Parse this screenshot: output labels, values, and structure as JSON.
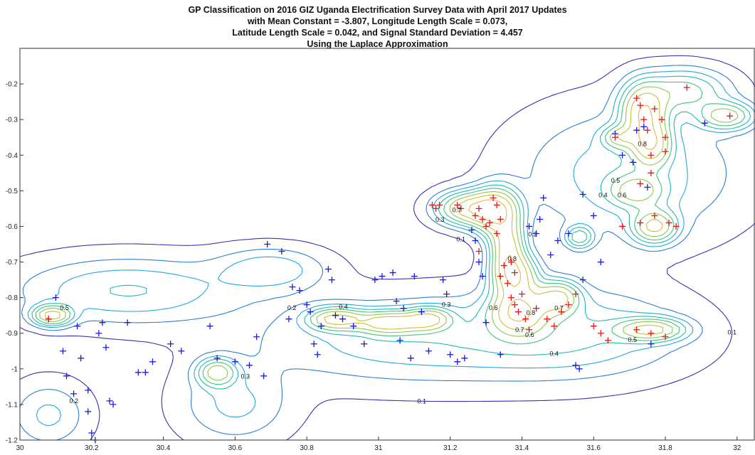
{
  "chart_data": {
    "type": "contour",
    "title": [
      "GP Classification on 2016 GIZ Uganda Electrification Survey Data with April 2017 Updates",
      "with Mean Constant = -3.807, Longitude Length Scale = 0.073,",
      "Latitude Length Scale = 0.042, and Signal Standard Deviation = 4.457",
      "Using the Laplace Approximation"
    ],
    "xlabel": "",
    "ylabel": "",
    "xlim": [
      30,
      32.05
    ],
    "ylim": [
      -1.2,
      -0.1
    ],
    "xticks": [
      30,
      30.2,
      30.4,
      30.6,
      30.8,
      31,
      31.2,
      31.4,
      31.6,
      31.8,
      32
    ],
    "yticks": [
      -0.2,
      -0.3,
      -0.4,
      -0.5,
      -0.6,
      -0.7,
      -0.8,
      -0.9,
      -1,
      -1.1,
      -1.2
    ],
    "grid": false,
    "contour_levels": [
      0.1,
      0.2,
      0.3,
      0.4,
      0.5,
      0.6,
      0.7,
      0.8,
      0.9
    ],
    "level_colors": [
      "#3b2fb0",
      "#2c7fd0",
      "#22a7e0",
      "#1fbbb0",
      "#3dc57c",
      "#8fc84a",
      "#c7c238",
      "#f0b53a",
      "#f7d43a"
    ],
    "bumps": [
      {
        "x": 30.09,
        "y": -0.85,
        "a": 1.0,
        "sx": 0.035,
        "sy": 0.018
      },
      {
        "x": 30.55,
        "y": -1.01,
        "a": 0.75,
        "sx": 0.035,
        "sy": 0.025
      },
      {
        "x": 30.88,
        "y": -0.86,
        "a": 0.9,
        "sx": 0.05,
        "sy": 0.02
      },
      {
        "x": 31.03,
        "y": -0.87,
        "a": 0.95,
        "sx": 0.06,
        "sy": 0.02
      },
      {
        "x": 31.14,
        "y": -0.86,
        "a": 0.8,
        "sx": 0.04,
        "sy": 0.02
      },
      {
        "x": 31.26,
        "y": -0.55,
        "a": 1.1,
        "sx": 0.06,
        "sy": 0.03
      },
      {
        "x": 31.33,
        "y": -0.56,
        "a": 1.0,
        "sx": 0.04,
        "sy": 0.045
      },
      {
        "x": 31.36,
        "y": -0.66,
        "a": 0.95,
        "sx": 0.03,
        "sy": 0.05
      },
      {
        "x": 31.38,
        "y": -0.74,
        "a": 1.1,
        "sx": 0.04,
        "sy": 0.04
      },
      {
        "x": 31.39,
        "y": -0.84,
        "a": 1.1,
        "sx": 0.05,
        "sy": 0.04
      },
      {
        "x": 31.5,
        "y": -0.8,
        "a": 0.9,
        "sx": 0.04,
        "sy": 0.03
      },
      {
        "x": 31.56,
        "y": -0.63,
        "a": 0.6,
        "sx": 0.025,
        "sy": 0.02
      },
      {
        "x": 31.76,
        "y": -0.89,
        "a": 0.9,
        "sx": 0.06,
        "sy": 0.02
      },
      {
        "x": 31.74,
        "y": -0.28,
        "a": 1.1,
        "sx": 0.04,
        "sy": 0.05
      },
      {
        "x": 31.76,
        "y": -0.37,
        "a": 0.95,
        "sx": 0.035,
        "sy": 0.04
      },
      {
        "x": 31.77,
        "y": -0.6,
        "a": 0.9,
        "sx": 0.04,
        "sy": 0.03
      },
      {
        "x": 31.72,
        "y": -0.5,
        "a": 0.6,
        "sx": 0.05,
        "sy": 0.03
      },
      {
        "x": 31.67,
        "y": -0.35,
        "a": 0.6,
        "sx": 0.03,
        "sy": 0.02
      },
      {
        "x": 31.97,
        "y": -0.29,
        "a": 0.75,
        "sx": 0.05,
        "sy": 0.025
      },
      {
        "x": 31.85,
        "y": -0.22,
        "a": 0.55,
        "sx": 0.08,
        "sy": 0.04
      },
      {
        "x": 30.3,
        "y": -0.78,
        "a": 0.35,
        "sx": 0.2,
        "sy": 0.06
      },
      {
        "x": 30.7,
        "y": -0.72,
        "a": 0.3,
        "sx": 0.1,
        "sy": 0.04
      },
      {
        "x": 31.1,
        "y": -0.92,
        "a": 0.3,
        "sx": 0.3,
        "sy": 0.08
      },
      {
        "x": 31.55,
        "y": -0.9,
        "a": 0.3,
        "sx": 0.2,
        "sy": 0.08
      },
      {
        "x": 31.7,
        "y": -0.45,
        "a": 0.3,
        "sx": 0.2,
        "sy": 0.12
      },
      {
        "x": 30.08,
        "y": -1.13,
        "a": 0.25,
        "sx": 0.07,
        "sy": 0.06
      },
      {
        "x": 30.6,
        "y": -1.1,
        "a": 0.25,
        "sx": 0.1,
        "sy": 0.07
      }
    ],
    "positive_points": [
      [
        30.08,
        -0.86
      ],
      [
        31.15,
        -0.54
      ],
      [
        31.16,
        -0.55
      ],
      [
        31.17,
        -0.54
      ],
      [
        31.22,
        -0.54
      ],
      [
        31.23,
        -0.55
      ],
      [
        31.27,
        -0.57
      ],
      [
        31.29,
        -0.58
      ],
      [
        31.3,
        -0.6
      ],
      [
        31.31,
        -0.59
      ],
      [
        31.28,
        -0.55
      ],
      [
        31.32,
        -0.52
      ],
      [
        31.33,
        -0.54
      ],
      [
        31.34,
        -0.58
      ],
      [
        31.33,
        -0.62
      ],
      [
        31.28,
        -0.67
      ],
      [
        31.35,
        -0.71
      ],
      [
        31.37,
        -0.7
      ],
      [
        31.38,
        -0.73
      ],
      [
        31.36,
        -0.76
      ],
      [
        31.34,
        -0.74
      ],
      [
        31.37,
        -0.8
      ],
      [
        31.38,
        -0.82
      ],
      [
        31.39,
        -0.84
      ],
      [
        31.41,
        -0.86
      ],
      [
        31.42,
        -0.89
      ],
      [
        31.4,
        -0.79
      ],
      [
        31.44,
        -0.83
      ],
      [
        31.47,
        -0.86
      ],
      [
        31.49,
        -0.88
      ],
      [
        31.51,
        -0.84
      ],
      [
        31.53,
        -0.82
      ],
      [
        31.55,
        -0.79
      ],
      [
        31.6,
        -0.88
      ],
      [
        31.62,
        -0.9
      ],
      [
        31.64,
        -0.92
      ],
      [
        31.72,
        -0.89
      ],
      [
        31.76,
        -0.9
      ],
      [
        31.8,
        -0.91
      ],
      [
        31.68,
        -0.6
      ],
      [
        31.72,
        -0.24
      ],
      [
        31.73,
        -0.26
      ],
      [
        31.74,
        -0.3
      ],
      [
        31.75,
        -0.33
      ],
      [
        31.77,
        -0.27
      ],
      [
        31.79,
        -0.3
      ],
      [
        31.86,
        -0.21
      ],
      [
        31.8,
        -0.35
      ],
      [
        31.8,
        -0.39
      ],
      [
        31.76,
        -0.4
      ],
      [
        31.76,
        -0.45
      ],
      [
        31.73,
        -0.48
      ],
      [
        31.77,
        -0.57
      ],
      [
        31.81,
        -0.59
      ],
      [
        31.83,
        -0.6
      ],
      [
        31.73,
        -0.59
      ],
      [
        31.66,
        -0.35
      ],
      [
        31.98,
        -0.29
      ]
    ],
    "negative_points": [
      [
        30.08,
        -0.86
      ],
      [
        30.1,
        -0.8
      ],
      [
        30.12,
        -0.95
      ],
      [
        30.13,
        -1.02
      ],
      [
        30.15,
        -1.07
      ],
      [
        30.16,
        -0.88
      ],
      [
        30.17,
        -0.97
      ],
      [
        30.19,
        -1.06
      ],
      [
        30.19,
        -1.12
      ],
      [
        30.2,
        -1.18
      ],
      [
        30.21,
        -1.2
      ],
      [
        30.22,
        -0.9
      ],
      [
        30.23,
        -0.87
      ],
      [
        30.25,
        -1.09
      ],
      [
        30.26,
        -1.1
      ],
      [
        30.24,
        -0.94
      ],
      [
        30.3,
        -0.87
      ],
      [
        30.33,
        -1.01
      ],
      [
        30.35,
        -1.01
      ],
      [
        30.37,
        -0.98
      ],
      [
        30.42,
        -0.93
      ],
      [
        30.45,
        -0.95
      ],
      [
        30.53,
        -0.88
      ],
      [
        30.55,
        -0.97
      ],
      [
        30.6,
        -0.98
      ],
      [
        30.64,
        -0.99
      ],
      [
        30.66,
        -0.91
      ],
      [
        30.68,
        -1.02
      ],
      [
        30.69,
        -0.65
      ],
      [
        30.73,
        -0.67
      ],
      [
        30.75,
        -0.86
      ],
      [
        30.76,
        -0.77
      ],
      [
        30.78,
        -0.78
      ],
      [
        30.8,
        -0.82
      ],
      [
        30.81,
        -0.84
      ],
      [
        30.82,
        -0.93
      ],
      [
        30.83,
        -0.96
      ],
      [
        30.84,
        -0.88
      ],
      [
        30.86,
        -0.72
      ],
      [
        30.87,
        -0.75
      ],
      [
        30.88,
        -0.85
      ],
      [
        30.9,
        -0.86
      ],
      [
        30.93,
        -0.88
      ],
      [
        30.96,
        -0.93
      ],
      [
        30.99,
        -0.75
      ],
      [
        31.01,
        -0.74
      ],
      [
        31.04,
        -0.73
      ],
      [
        31.05,
        -0.81
      ],
      [
        31.06,
        -0.92
      ],
      [
        31.07,
        -0.83
      ],
      [
        31.09,
        -0.97
      ],
      [
        31.1,
        -0.74
      ],
      [
        31.12,
        -0.84
      ],
      [
        31.14,
        -0.95
      ],
      [
        31.18,
        -0.75
      ],
      [
        31.19,
        -0.79
      ],
      [
        31.2,
        -0.96
      ],
      [
        31.22,
        -0.98
      ],
      [
        31.24,
        -0.97
      ],
      [
        31.26,
        -0.61
      ],
      [
        31.27,
        -0.64
      ],
      [
        31.28,
        -0.7
      ],
      [
        31.29,
        -0.74
      ],
      [
        31.3,
        -0.87
      ],
      [
        31.34,
        -0.96
      ],
      [
        31.42,
        -0.6
      ],
      [
        31.44,
        -0.62
      ],
      [
        31.45,
        -0.58
      ],
      [
        31.46,
        -0.52
      ],
      [
        31.48,
        -0.68
      ],
      [
        31.5,
        -0.64
      ],
      [
        31.53,
        -0.62
      ],
      [
        31.55,
        -0.99
      ],
      [
        31.56,
        -1.0
      ],
      [
        31.57,
        -0.75
      ],
      [
        31.6,
        -0.57
      ],
      [
        31.62,
        -0.7
      ],
      [
        31.66,
        -0.34
      ],
      [
        31.68,
        -0.4
      ],
      [
        31.71,
        -0.42
      ],
      [
        31.72,
        -0.33
      ],
      [
        31.74,
        -0.32
      ],
      [
        31.75,
        -0.49
      ],
      [
        31.76,
        -0.93
      ],
      [
        31.91,
        -0.31
      ],
      [
        31.57,
        -0.51
      ]
    ]
  },
  "colors": {
    "positive": "#e0191c",
    "negative": "#1a1adc",
    "axis": "#333333",
    "background": "#ffffff"
  }
}
